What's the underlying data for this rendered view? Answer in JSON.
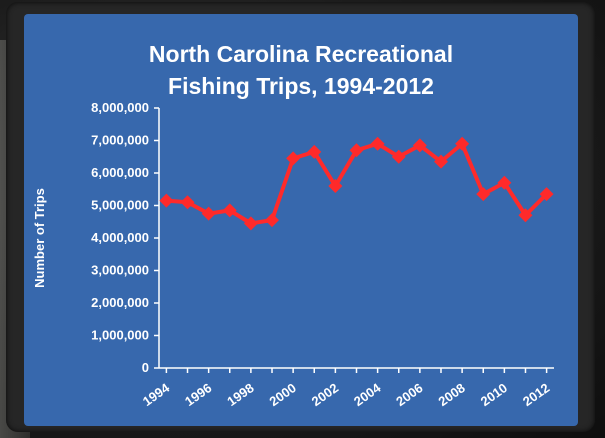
{
  "chart_data": {
    "type": "line",
    "title_line1": "North Carolina Recreational",
    "title_line2": "Fishing Trips, 1994-2012",
    "xlabel": "",
    "ylabel": "Number of Trips",
    "ylim": [
      0,
      8000000
    ],
    "yticks": [
      "0",
      "1,000,000",
      "2,000,000",
      "3,000,000",
      "4,000,000",
      "5,000,000",
      "6,000,000",
      "7,000,000",
      "8,000,000"
    ],
    "xticks": [
      "1994",
      "1996",
      "1998",
      "2000",
      "2002",
      "2004",
      "2006",
      "2008",
      "2010",
      "2012"
    ],
    "x": [
      1994,
      1995,
      1996,
      1997,
      1998,
      1999,
      2000,
      2001,
      2002,
      2003,
      2004,
      2005,
      2006,
      2007,
      2008,
      2009,
      2010,
      2011,
      2012
    ],
    "values": [
      5150000,
      5100000,
      4750000,
      4850000,
      4450000,
      4550000,
      6450000,
      6650000,
      5600000,
      6700000,
      6900000,
      6500000,
      6850000,
      6350000,
      6900000,
      5350000,
      5700000,
      4700000,
      5350000
    ],
    "grid": false,
    "series_color": "#ff2a2a",
    "background_color": "#3768ad"
  }
}
